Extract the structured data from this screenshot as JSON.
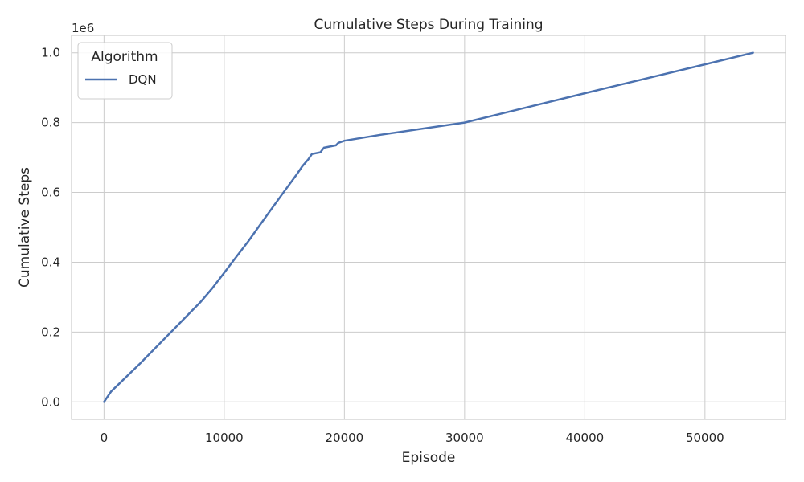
{
  "chart_data": {
    "type": "line",
    "title": "Cumulative Steps During Training",
    "xlabel": "Episode",
    "ylabel": "Cumulative Steps",
    "y_offset_label": "1e6",
    "xlim": [
      -2700,
      56700
    ],
    "ylim": [
      -0.05,
      1.05
    ],
    "xticks": [
      0,
      10000,
      20000,
      30000,
      40000,
      50000
    ],
    "xtick_labels": [
      "0",
      "10000",
      "20000",
      "30000",
      "40000",
      "50000"
    ],
    "yticks": [
      0.0,
      0.2,
      0.4,
      0.6,
      0.8,
      1.0
    ],
    "ytick_labels": [
      "0.0",
      "0.2",
      "0.4",
      "0.6",
      "0.8",
      "1.0"
    ],
    "grid": true,
    "legend": {
      "title": "Algorithm",
      "placement": "top-left"
    },
    "series": [
      {
        "name": "DQN",
        "color": "#4c72b0",
        "x": [
          0,
          300,
          600,
          1500,
          3000,
          5000,
          7000,
          8000,
          9000,
          10000,
          11000,
          12000,
          13000,
          14000,
          15000,
          16000,
          16500,
          17000,
          17300,
          18000,
          18300,
          19300,
          19500,
          20000,
          23000,
          30000,
          40000,
          50000,
          54000
        ],
        "y": [
          0.0,
          0.015,
          0.03,
          0.06,
          0.11,
          0.18,
          0.25,
          0.285,
          0.325,
          0.37,
          0.415,
          0.46,
          0.508,
          0.556,
          0.603,
          0.65,
          0.675,
          0.695,
          0.71,
          0.715,
          0.728,
          0.735,
          0.742,
          0.748,
          0.765,
          0.8,
          0.884,
          0.967,
          1.0
        ]
      }
    ]
  }
}
